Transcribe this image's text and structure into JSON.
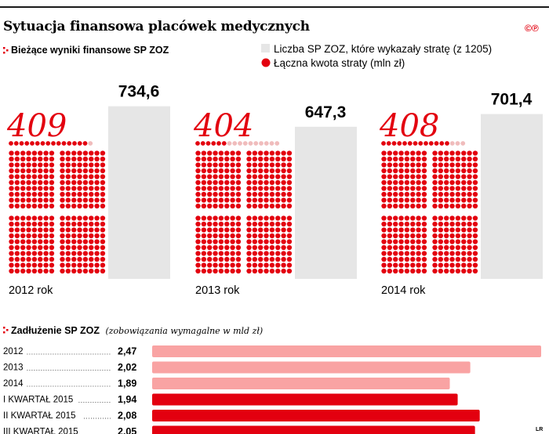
{
  "title": "Sytuacja finansowa placówek medycznych",
  "brand": "©℗",
  "sections": {
    "results_title": "Bieżące wyniki finansowe SP ZOZ",
    "debt_title": "Zadłużenie SP ZOZ",
    "debt_subtitle": "(zobowiązania wymagalne w mld zł)"
  },
  "legend": {
    "count_label": "Liczba SP ZOZ, które wykazały stratę (z 1205)",
    "loss_label": "Łączna kwota straty (mln zł)"
  },
  "signature": "LR",
  "colors": {
    "accent": "#e3000f",
    "loss_bar": "#e6e6e6",
    "debt_year_bar": "#f9a3a3",
    "debt_quarter_bar": "#e3000f",
    "dot_empty": "#f0bcbc"
  },
  "chart_data": [
    {
      "type": "bar",
      "title": "Bieżące wyniki finansowe SP ZOZ",
      "categories": [
        "2012 rok",
        "2013 rok",
        "2014 rok"
      ],
      "series": [
        {
          "name": "Liczba SP ZOZ, które wykazały stratę (z 1205)",
          "values": [
            409,
            404,
            408
          ]
        },
        {
          "name": "Łączna kwota straty (mln zł)",
          "values": [
            734.6,
            647.3,
            701.4
          ]
        }
      ],
      "value_labels": [
        "734,6",
        "647,3",
        "701,4"
      ],
      "count_labels": [
        "409",
        "404",
        "408"
      ],
      "dots_per_unit": 1,
      "total_units": 1205,
      "ylim": [
        0,
        800
      ]
    },
    {
      "type": "bar",
      "orientation": "horizontal",
      "title": "Zadłużenie SP ZOZ",
      "subtitle": "(zobowiązania wymagalne w mld zł)",
      "categories": [
        "2012",
        "2013",
        "2014",
        "I KWARTAŁ 2015",
        "II KWARTAŁ 2015",
        "III KWARTAŁ 2015"
      ],
      "values": [
        2.47,
        2.02,
        1.89,
        1.94,
        2.08,
        2.05
      ],
      "value_labels": [
        "2,47",
        "2,02",
        "1,89",
        "1,94",
        "2,08",
        "2,05"
      ],
      "xlim": [
        0,
        2.47
      ]
    }
  ]
}
